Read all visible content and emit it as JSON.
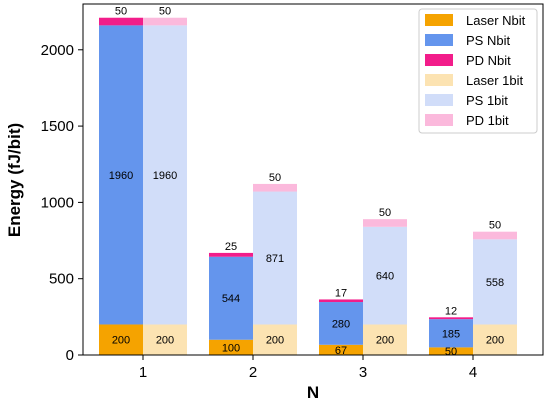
{
  "chart_data": {
    "type": "bar",
    "stacked": true,
    "grouped": true,
    "categories": [
      "1",
      "2",
      "3",
      "4"
    ],
    "xlabel": "N",
    "ylabel": "Energy (fJ/bit)",
    "ylim": [
      0,
      2300
    ],
    "yticks": [
      0,
      500,
      1000,
      1500,
      2000
    ],
    "grid": false,
    "legend_position": "top-right",
    "groups": [
      {
        "name": "Nbit",
        "series": [
          {
            "name": "Laser Nbit",
            "color": "#F5A300",
            "values": [
              200,
              100,
              67,
              50
            ],
            "labels": [
              "200",
              "100",
              "67",
              "50"
            ]
          },
          {
            "name": "PS Nbit",
            "color": "#6495ED",
            "values": [
              1960,
              544,
              280,
              185
            ],
            "labels": [
              "1960",
              "544",
              "280",
              "185"
            ]
          },
          {
            "name": "PD Nbit",
            "color": "#F21D8A",
            "values": [
              50,
              25,
              17,
              12
            ],
            "labels": [
              "50",
              "25",
              "17",
              "12"
            ]
          }
        ]
      },
      {
        "name": "1bit",
        "series": [
          {
            "name": "Laser 1bit",
            "color": "#FCE3B2",
            "values": [
              200,
              200,
              200,
              200
            ],
            "labels": [
              "200",
              "200",
              "200",
              "200"
            ]
          },
          {
            "name": "PS 1bit",
            "color": "#D1DDF9",
            "values": [
              1960,
              871,
              640,
              558
            ],
            "labels": [
              "1960",
              "871",
              "640",
              "558"
            ]
          },
          {
            "name": "PD 1bit",
            "color": "#FBB9DC",
            "values": [
              50,
              50,
              50,
              50
            ],
            "labels": [
              "50",
              "50",
              "50",
              "50"
            ]
          }
        ]
      }
    ]
  }
}
